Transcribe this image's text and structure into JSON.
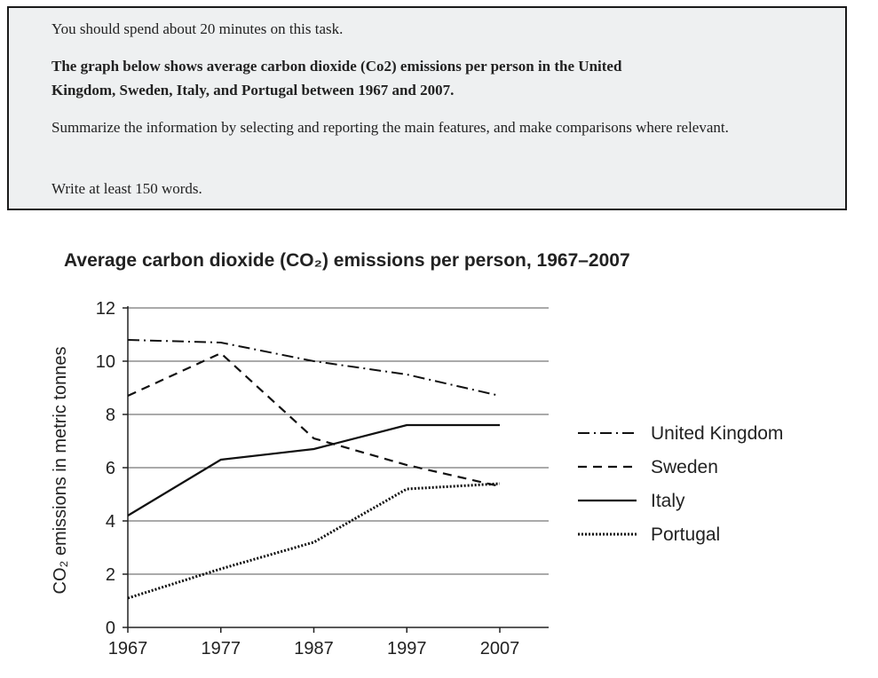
{
  "task": {
    "time_note": "You should spend about 20 minutes on this task.",
    "prompt_bold": "The graph below shows average carbon dioxide (Co2) emissions per person in the United Kingdom, Sweden, Italy, and Portugal between 1967 and 2007.",
    "instruction": "Summarize the information by selecting and reporting the main features, and make comparisons where relevant.",
    "word_limit": "Write at least 150 words."
  },
  "chart_data": {
    "type": "line",
    "title": "Average carbon dioxide (CO₂) emissions per person, 1967–2007",
    "ylabel": "CO₂ emissions in metric tonnes",
    "xlabel": "",
    "x": [
      1967,
      1977,
      1987,
      1997,
      2007
    ],
    "ylim": [
      0,
      12
    ],
    "yticks": [
      0,
      2,
      4,
      6,
      8,
      10,
      12
    ],
    "grid": "horizontal",
    "legend_position": "right",
    "series": [
      {
        "name": "United Kingdom",
        "style": "dash-dot",
        "values": [
          10.8,
          10.7,
          10.0,
          9.5,
          8.7
        ]
      },
      {
        "name": "Sweden",
        "style": "dashed",
        "values": [
          8.7,
          10.3,
          7.1,
          6.1,
          5.3
        ]
      },
      {
        "name": "Italy",
        "style": "solid",
        "values": [
          4.2,
          6.3,
          6.7,
          7.6,
          7.6
        ]
      },
      {
        "name": "Portugal",
        "style": "dotted",
        "values": [
          1.1,
          2.2,
          3.2,
          5.2,
          5.4
        ]
      }
    ]
  }
}
